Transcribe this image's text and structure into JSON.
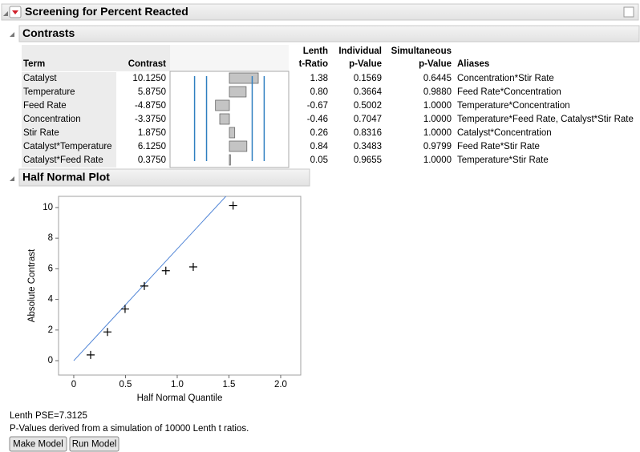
{
  "header": {
    "title": "Screening for Percent Reacted"
  },
  "contrasts": {
    "title": "Contrasts",
    "columns": [
      [
        "Term"
      ],
      [
        "Contrast"
      ],
      [
        "Lenth",
        "t-Ratio"
      ],
      [
        "Individual",
        "p-Value"
      ],
      [
        "Simultaneous",
        "p-Value"
      ],
      [
        "Aliases"
      ]
    ],
    "rows": [
      [
        "Catalyst",
        "10.1250",
        "1.38",
        "0.1569",
        "0.6445",
        "Concentration*Stir Rate"
      ],
      [
        "Temperature",
        "5.8750",
        "0.80",
        "0.3664",
        "0.9880",
        "Feed Rate*Concentration"
      ],
      [
        "Feed Rate",
        "-4.8750",
        "-0.67",
        "0.5002",
        "1.0000",
        "Temperature*Concentration"
      ],
      [
        "Concentration",
        "-3.3750",
        "-0.46",
        "0.7047",
        "1.0000",
        "Temperature*Feed Rate, Catalyst*Stir Rate"
      ],
      [
        "Stir Rate",
        "1.8750",
        "0.26",
        "0.8316",
        "1.0000",
        "Catalyst*Concentration"
      ],
      [
        "Catalyst*Temperature",
        "6.1250",
        "0.84",
        "0.3483",
        "0.9799",
        "Feed Rate*Stir Rate"
      ],
      [
        "Catalyst*Feed Rate",
        "0.3750",
        "0.05",
        "0.9655",
        "1.0000",
        "Temperature*Stir Rate"
      ]
    ],
    "bar_values": [
      10.125,
      5.875,
      -4.875,
      -3.375,
      1.875,
      6.125,
      0.375
    ],
    "bar_xlim": [
      -20.8,
      20.8
    ],
    "reference_lines": [
      -12.2,
      -8,
      8,
      12.2
    ],
    "bar_color": "#c4c4c4",
    "reference_color": "#2f7fc0"
  },
  "chart_data": {
    "type": "scatter",
    "title": "Half Normal Plot",
    "x_label": "Half Normal Quantile",
    "y_label": "Absolute Contrast",
    "x": [
      0.163,
      0.326,
      0.496,
      0.682,
      0.89,
      1.155,
      1.54
    ],
    "values": [
      0.375,
      1.875,
      3.375,
      4.875,
      5.875,
      6.125,
      10.125
    ],
    "fit_line": {
      "x": [
        0,
        1.48
      ],
      "y": [
        0,
        10.8
      ],
      "color": "#4f84d6"
    },
    "xlim": [
      -0.147,
      2.194
    ],
    "ylim": [
      -0.94,
      10.73
    ],
    "xticks": [
      0,
      0.5,
      {
        "value": 1,
        "label": "1.0"
      },
      1.5,
      {
        "value": 2,
        "label": "2.0"
      }
    ],
    "yticks": [
      0,
      2,
      4,
      6,
      8,
      10
    ]
  },
  "footer": {
    "notes": [
      "Lenth PSE=7.3125",
      "P-Values derived from a simulation of 10000 Lenth t ratios."
    ],
    "buttons": [
      "Make Model",
      "Run Model"
    ]
  }
}
